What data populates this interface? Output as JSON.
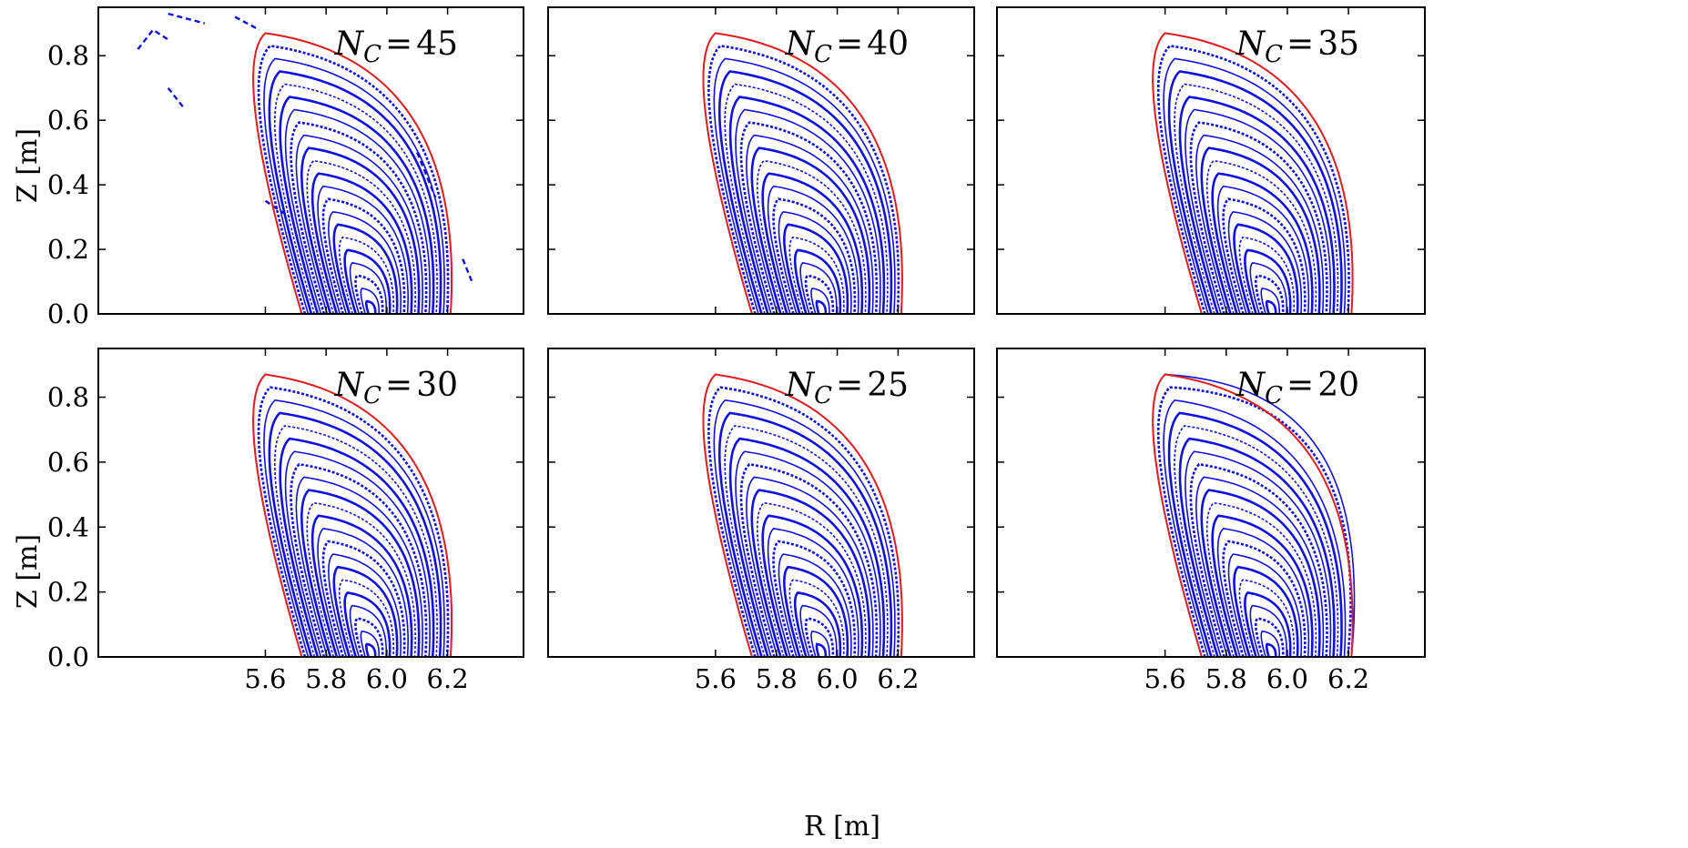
{
  "chart_data": {
    "type": "scatter",
    "description_units": {
      "x": "R [m]",
      "y": "Z [m]"
    },
    "xlabel": "R [m]",
    "ylabel": "Z [m]",
    "xlim": [
      5.05,
      6.45
    ],
    "ylim": [
      0.0,
      0.95
    ],
    "xticks": [
      "5.6",
      "5.8",
      "6.0",
      "6.2"
    ],
    "yticks": [
      "0.0",
      "0.2",
      "0.4",
      "0.6",
      "0.8"
    ],
    "grid": false,
    "colors": {
      "surfaces": "#1010e0",
      "boundary": "#e02020",
      "frame": "#000000"
    },
    "boundary_shape": {
      "r_inner_bottom": 5.72,
      "r_outer_bottom": 6.21,
      "r_top": 5.6,
      "z_top": 0.87,
      "magnetic_axis_r": 5.95
    },
    "panels": [
      {
        "nsym": "N",
        "sub": "C",
        "eq": "=",
        "num": "45",
        "n_c": 45,
        "row": 0,
        "col": 0,
        "stray": true
      },
      {
        "nsym": "N",
        "sub": "C",
        "eq": "=",
        "num": "40",
        "n_c": 40,
        "row": 0,
        "col": 1,
        "stray": false
      },
      {
        "nsym": "N",
        "sub": "C",
        "eq": "=",
        "num": "35",
        "n_c": 35,
        "row": 0,
        "col": 2,
        "stray": false
      },
      {
        "nsym": "N",
        "sub": "C",
        "eq": "=",
        "num": "30",
        "n_c": 30,
        "row": 1,
        "col": 0,
        "stray": false
      },
      {
        "nsym": "N",
        "sub": "C",
        "eq": "=",
        "num": "25",
        "n_c": 25,
        "row": 1,
        "col": 1,
        "stray": false
      },
      {
        "nsym": "N",
        "sub": "C",
        "eq": "=",
        "num": "20",
        "n_c": 20,
        "row": 1,
        "col": 2,
        "stray": false,
        "bulge": true
      }
    ]
  }
}
